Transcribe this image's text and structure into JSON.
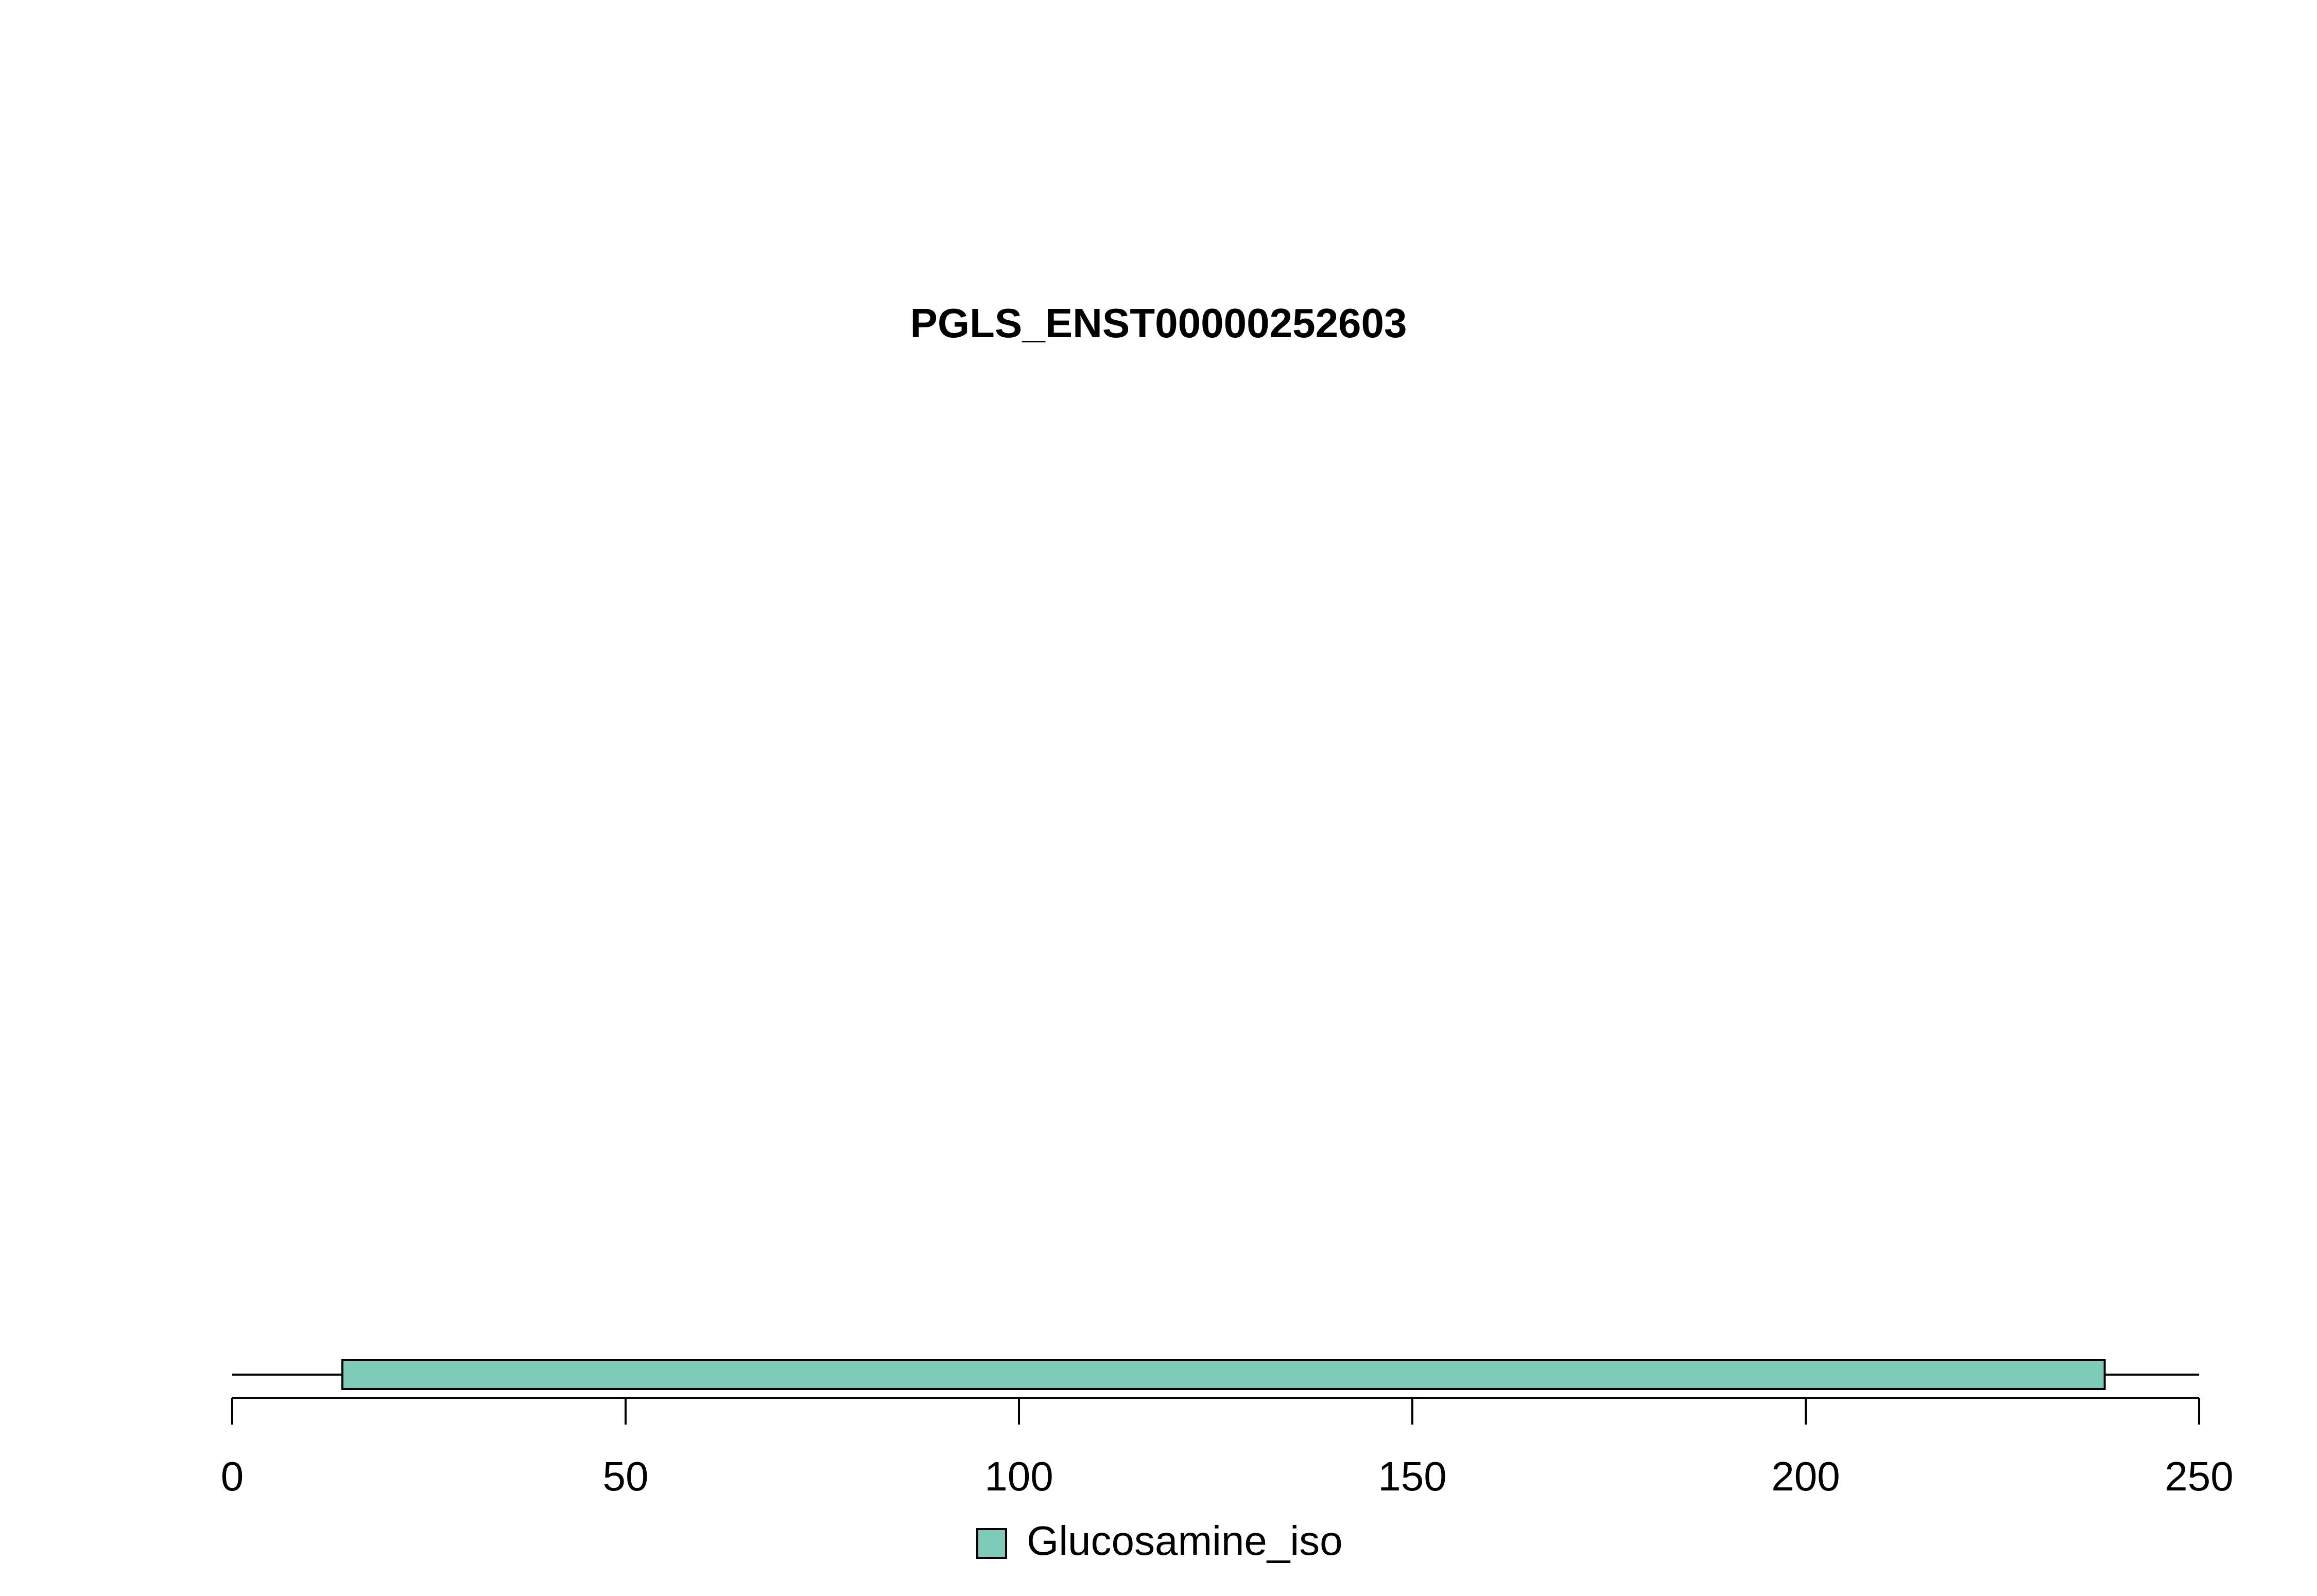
{
  "chart_data": {
    "type": "protein-domain-track",
    "title": "PGLS_ENST00000252603",
    "xlim": [
      0,
      250
    ],
    "ticks": [
      0,
      50,
      100,
      150,
      200,
      250
    ],
    "tick_labels": [
      "0",
      "50",
      "100",
      "150",
      "200",
      "250"
    ],
    "backbone": {
      "start": 0,
      "end": 250
    },
    "domains": [
      {
        "name": "Glucosamine_iso",
        "start": 14,
        "end": 238,
        "color": "#7fcbb9"
      }
    ],
    "legend": {
      "placement": "bottom-center",
      "entries": [
        {
          "label": "Glucosamine_iso",
          "color": "#7fcbb9"
        }
      ]
    },
    "grid": false
  }
}
